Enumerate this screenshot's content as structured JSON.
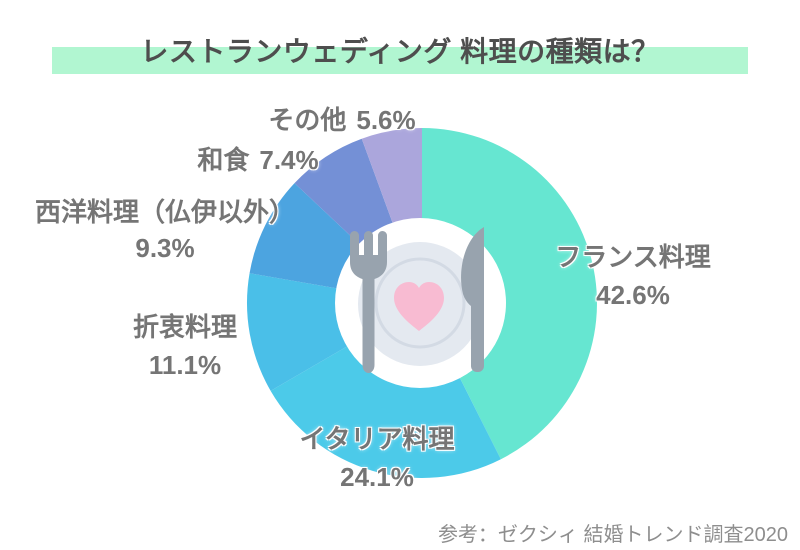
{
  "title": "レストランウェディング 料理の種類は？",
  "source": "参考：ゼクシィ 結婚トレンド調査2020",
  "colors": {
    "title_highlight": "#B1F6D1",
    "title_text": "#4E4E4E",
    "label_text": "#757575",
    "donut_hole": "#FFFFFF",
    "plate": "#E4E9F0",
    "plate_ring": "#D3DAE4",
    "heart": "#F8BBD2",
    "cutlery": "#98A3AE"
  },
  "chart_data": {
    "type": "pie",
    "subtype": "donut",
    "title": "レストランウェディング 料理の種類は？",
    "legend_position": "around",
    "start_angle_deg": -90,
    "direction": "clockwise",
    "center_icon": "plate-with-heart-fork-knife",
    "series": [
      {
        "label": "フランス料理",
        "value": 42.6,
        "pct_label": "42.6%",
        "color": "#66E6D1"
      },
      {
        "label": "イタリア料理",
        "value": 24.1,
        "pct_label": "24.1%",
        "color": "#4CCAE9"
      },
      {
        "label": "折衷料理",
        "value": 11.1,
        "pct_label": "11.1%",
        "color": "#4ABFE8"
      },
      {
        "label": "西洋料理（仏伊以外）",
        "value": 9.3,
        "pct_label": "9.3%",
        "color": "#4CA4E0"
      },
      {
        "label": "和食",
        "value": 7.4,
        "pct_label": "7.4%",
        "color": "#7490D6"
      },
      {
        "label": "その他",
        "value": 5.6,
        "pct_label": "5.6%",
        "color": "#ABA6DC"
      }
    ]
  }
}
